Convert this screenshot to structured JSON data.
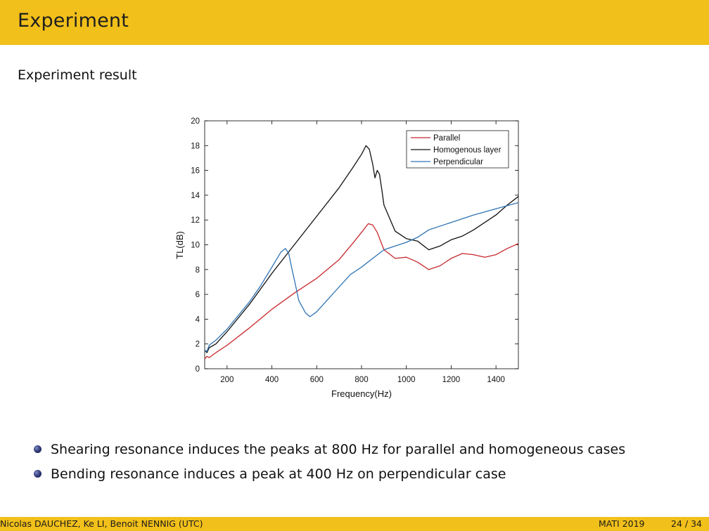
{
  "header": {
    "title": "Experiment"
  },
  "slide": {
    "subtitle": "Experiment result"
  },
  "bullets": [
    "Shearing resonance induces the peaks at 800 Hz for parallel and homogeneous cases",
    "Bending resonance induces a peak at 400 Hz on perpendicular case"
  ],
  "footer": {
    "authors": "Nicolas DAUCHEZ, Ke LI, Benoit NENNIG (UTC)",
    "conference": "MATI 2019",
    "page": "24 / 34"
  },
  "colors": {
    "accent": "#f2c01a",
    "parallel": "#c8282d",
    "homogenous": "#111111",
    "perpendicular": "#2f73b3"
  },
  "chart_data": {
    "type": "line",
    "title": "",
    "xlabel": "Frequency(Hz)",
    "ylabel": "TL(dB)",
    "xlim": [
      100,
      1500
    ],
    "ylim": [
      0,
      20
    ],
    "xticks": [
      200,
      400,
      600,
      800,
      1000,
      1200,
      1400
    ],
    "yticks": [
      0,
      2,
      4,
      6,
      8,
      10,
      12,
      14,
      16,
      18,
      20
    ],
    "legend_position": "top-right",
    "series": [
      {
        "name": "Parallel",
        "color": "#c8282d",
        "x": [
          100,
          110,
          120,
          150,
          200,
          300,
          400,
          500,
          600,
          700,
          760,
          800,
          830,
          850,
          870,
          900,
          950,
          1000,
          1050,
          1100,
          1150,
          1200,
          1250,
          1300,
          1350,
          1400,
          1450,
          1500
        ],
        "y": [
          0.8,
          1.0,
          0.9,
          1.3,
          1.9,
          3.3,
          4.8,
          6.1,
          7.3,
          8.8,
          10.1,
          11.0,
          11.7,
          11.6,
          11.0,
          9.6,
          8.9,
          9.0,
          8.6,
          8.0,
          8.3,
          8.9,
          9.3,
          9.2,
          9.0,
          9.2,
          9.7,
          10.1
        ]
      },
      {
        "name": "Homogenous layer",
        "color": "#111111",
        "x": [
          100,
          110,
          120,
          150,
          200,
          300,
          400,
          500,
          600,
          700,
          760,
          800,
          820,
          835,
          850,
          860,
          870,
          880,
          890,
          900,
          950,
          1000,
          1050,
          1100,
          1150,
          1200,
          1250,
          1300,
          1350,
          1400,
          1450,
          1500
        ],
        "y": [
          1.5,
          1.3,
          1.7,
          2.0,
          3.0,
          5.2,
          7.7,
          10.0,
          12.3,
          14.6,
          16.2,
          17.3,
          18.0,
          17.7,
          16.5,
          15.4,
          16.0,
          15.7,
          14.5,
          13.2,
          11.1,
          10.5,
          10.3,
          9.6,
          9.9,
          10.4,
          10.7,
          11.2,
          11.8,
          12.4,
          13.2,
          13.9
        ]
      },
      {
        "name": "Perpendicular",
        "color": "#2f73b3",
        "x": [
          100,
          110,
          120,
          150,
          200,
          300,
          350,
          400,
          440,
          460,
          475,
          490,
          500,
          520,
          550,
          570,
          600,
          650,
          700,
          750,
          800,
          850,
          900,
          950,
          1000,
          1050,
          1100,
          1200,
          1300,
          1400,
          1500
        ],
        "y": [
          1.5,
          1.4,
          1.9,
          2.3,
          3.2,
          5.4,
          6.7,
          8.2,
          9.4,
          9.7,
          9.3,
          8.0,
          7.2,
          5.5,
          4.5,
          4.2,
          4.6,
          5.6,
          6.6,
          7.6,
          8.2,
          8.9,
          9.6,
          9.9,
          10.2,
          10.6,
          11.2,
          11.8,
          12.4,
          12.9,
          13.4
        ]
      }
    ]
  }
}
